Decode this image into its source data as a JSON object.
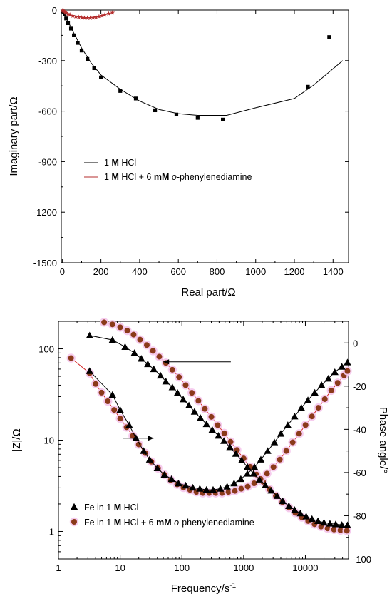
{
  "chart_data": [
    {
      "type": "scatter",
      "xlabel": "Real part/Ω",
      "ylabel": "Imaginary part/Ω",
      "xlim": [
        -5,
        1480
      ],
      "ylim": [
        -1500,
        0
      ],
      "xticks": [
        0,
        200,
        400,
        600,
        800,
        1000,
        1200,
        1400
      ],
      "yticks": [
        0,
        -300,
        -600,
        -900,
        -1200,
        -1500
      ],
      "legend_position": "middle-left",
      "series": [
        {
          "name": "1 M HCl",
          "color": "#000000",
          "marker": "square",
          "points": [
            [
              5,
              -8
            ],
            [
              12,
              -25
            ],
            [
              20,
              -50
            ],
            [
              30,
              -78
            ],
            [
              45,
              -110
            ],
            [
              60,
              -150
            ],
            [
              80,
              -195
            ],
            [
              100,
              -240
            ],
            [
              130,
              -290
            ],
            [
              165,
              -345
            ],
            [
              200,
              -400
            ],
            [
              300,
              -480
            ],
            [
              380,
              -525
            ],
            [
              480,
              -595
            ],
            [
              590,
              -620
            ],
            [
              700,
              -640
            ],
            [
              830,
              -650
            ],
            [
              1270,
              -455
            ],
            [
              1380,
              -160
            ]
          ],
          "fit": [
            [
              0,
              -5
            ],
            [
              20,
              -45
            ],
            [
              50,
              -115
            ],
            [
              100,
              -225
            ],
            [
              150,
              -315
            ],
            [
              200,
              -385
            ],
            [
              300,
              -470
            ],
            [
              400,
              -540
            ],
            [
              500,
              -590
            ],
            [
              600,
              -615
            ],
            [
              700,
              -625
            ],
            [
              850,
              -625
            ],
            [
              1000,
              -580
            ],
            [
              1200,
              -525
            ],
            [
              1300,
              -445
            ],
            [
              1450,
              -300
            ]
          ]
        },
        {
          "name": "1 M HCl + 6 mM o-phenylenediamine",
          "color": "#b42d2d",
          "marker": "star",
          "points": [
            [
              2,
              -2
            ],
            [
              6,
              -5
            ],
            [
              10,
              -9
            ],
            [
              15,
              -13
            ],
            [
              20,
              -17
            ],
            [
              30,
              -23
            ],
            [
              40,
              -28
            ],
            [
              55,
              -34
            ],
            [
              70,
              -38
            ],
            [
              85,
              -42
            ],
            [
              100,
              -44
            ],
            [
              115,
              -46
            ],
            [
              130,
              -47
            ],
            [
              145,
              -47
            ],
            [
              160,
              -45
            ],
            [
              175,
              -42
            ],
            [
              190,
              -38
            ],
            [
              205,
              -33
            ],
            [
              220,
              -28
            ],
            [
              240,
              -22
            ],
            [
              260,
              -15
            ]
          ],
          "fit": [
            [
              0,
              0
            ],
            [
              20,
              -16
            ],
            [
              50,
              -32
            ],
            [
              100,
              -44
            ],
            [
              140,
              -47
            ],
            [
              180,
              -42
            ],
            [
              220,
              -29
            ],
            [
              260,
              -15
            ]
          ]
        }
      ],
      "legend": [
        {
          "pre": "1 ",
          "bold": "M",
          "post": " HCl"
        },
        {
          "pre": "1 ",
          "bold": "M",
          "mid": " HCl + 6 ",
          "bold2": "mM",
          "post_italic": " o",
          "post": "-phenylenediamine"
        }
      ]
    },
    {
      "type": "scatter",
      "xlabel": "Frequency/s",
      "xlabel_sup": "-1",
      "ylabel_left": "|Z|/Ω",
      "ylabel_right": "Phase angle/°",
      "xscale": "log",
      "yscale_left": "log",
      "xlim": [
        1,
        50000
      ],
      "ylim_left": [
        0.5,
        200
      ],
      "ylim_right": [
        -100,
        10
      ],
      "xticks": [
        1,
        10,
        100,
        1000,
        10000
      ],
      "xtick_labels": [
        "1",
        "10",
        "100",
        "1000",
        "10000"
      ],
      "yticks_left": [
        1,
        10,
        100
      ],
      "yticks_right": [
        0,
        -20,
        -40,
        -60,
        -80,
        -100
      ],
      "legend_position": "bottom-left",
      "series": [
        {
          "name": "Fe in 1 M HCl",
          "axis": "left",
          "quantity": "|Z|",
          "color": "#000000",
          "marker": "triangle",
          "points": [
            [
              3.2,
              140
            ],
            [
              7.5,
              125
            ],
            [
              12,
              105
            ],
            [
              17,
              90
            ],
            [
              22,
              78
            ],
            [
              28,
              68
            ],
            [
              35,
              60
            ],
            [
              45,
              51
            ],
            [
              55,
              44
            ],
            [
              70,
              38
            ],
            [
              85,
              33
            ],
            [
              105,
              28
            ],
            [
              130,
              24
            ],
            [
              160,
              20.5
            ],
            [
              200,
              17.5
            ],
            [
              250,
              15
            ],
            [
              310,
              13
            ],
            [
              390,
              11.2
            ],
            [
              480,
              9.8
            ],
            [
              600,
              8.4
            ],
            [
              750,
              7.1
            ],
            [
              930,
              6
            ],
            [
              1150,
              5.1
            ],
            [
              1450,
              4.3
            ],
            [
              1800,
              3.7
            ],
            [
              2250,
              3.2
            ],
            [
              2800,
              2.8
            ],
            [
              3500,
              2.45
            ],
            [
              4300,
              2.15
            ],
            [
              5400,
              1.9
            ],
            [
              6700,
              1.72
            ],
            [
              8300,
              1.58
            ],
            [
              10300,
              1.46
            ],
            [
              12800,
              1.37
            ],
            [
              16000,
              1.3
            ],
            [
              20000,
              1.25
            ],
            [
              25000,
              1.22
            ],
            [
              31000,
              1.2
            ],
            [
              39000,
              1.18
            ],
            [
              48000,
              1.17
            ]
          ]
        },
        {
          "name": "Fe in 1 M HCl (phase)",
          "axis": "right",
          "quantity": "Phase angle",
          "color": "#000000",
          "marker": "triangle",
          "points": [
            [
              3.2,
              -13
            ],
            [
              7.5,
              -24
            ],
            [
              10,
              -31
            ],
            [
              14,
              -38
            ],
            [
              18,
              -44
            ],
            [
              24,
              -50
            ],
            [
              30,
              -54
            ],
            [
              40,
              -58
            ],
            [
              52,
              -61
            ],
            [
              68,
              -63
            ],
            [
              88,
              -65
            ],
            [
              115,
              -66
            ],
            [
              150,
              -67
            ],
            [
              195,
              -67.5
            ],
            [
              250,
              -68
            ],
            [
              320,
              -68
            ],
            [
              420,
              -67.5
            ],
            [
              540,
              -66.5
            ],
            [
              700,
              -65
            ],
            [
              900,
              -63
            ],
            [
              1150,
              -60.5
            ],
            [
              1500,
              -57.5
            ],
            [
              1900,
              -54
            ],
            [
              2450,
              -50
            ],
            [
              3150,
              -46
            ],
            [
              4000,
              -42
            ],
            [
              5200,
              -38
            ],
            [
              6700,
              -34
            ],
            [
              8600,
              -30
            ],
            [
              11000,
              -26.5
            ],
            [
              14200,
              -23
            ],
            [
              18300,
              -19.5
            ],
            [
              23500,
              -16.5
            ],
            [
              30000,
              -13.5
            ],
            [
              39000,
              -11
            ],
            [
              48000,
              -9
            ]
          ]
        },
        {
          "name": "Fe in 1 M HCl + 6 mM o-phenylenediamine",
          "axis": "left",
          "quantity": "|Z|",
          "color": "#8b3a1a",
          "marker": "circle",
          "points": [
            [
              5.5,
              195
            ],
            [
              7.5,
              185
            ],
            [
              10,
              172
            ],
            [
              13,
              158
            ],
            [
              16.5,
              143
            ],
            [
              21,
              126
            ],
            [
              27,
              110
            ],
            [
              34,
              95
            ],
            [
              43,
              82
            ],
            [
              55,
              70
            ],
            [
              70,
              59
            ],
            [
              90,
              49
            ],
            [
              115,
              40
            ],
            [
              145,
              33
            ],
            [
              185,
              27
            ],
            [
              235,
              22
            ],
            [
              300,
              18
            ],
            [
              380,
              14.6
            ],
            [
              485,
              11.9
            ],
            [
              615,
              9.6
            ],
            [
              780,
              7.8
            ],
            [
              1000,
              6.3
            ],
            [
              1270,
              5.1
            ],
            [
              1620,
              4.2
            ],
            [
              2060,
              3.5
            ],
            [
              2620,
              2.9
            ],
            [
              3330,
              2.45
            ],
            [
              4240,
              2.1
            ],
            [
              5400,
              1.82
            ],
            [
              6870,
              1.6
            ],
            [
              8740,
              1.43
            ],
            [
              11100,
              1.3
            ],
            [
              14100,
              1.2
            ],
            [
              18000,
              1.13
            ],
            [
              22900,
              1.08
            ],
            [
              29100,
              1.05
            ],
            [
              37000,
              1.03
            ],
            [
              47000,
              1.02
            ]
          ]
        },
        {
          "name": "Fe in 1 M HCl + 6 mM o-phenylenediamine (phase)",
          "axis": "right",
          "quantity": "Phase angle",
          "color": "#8b3a1a",
          "marker": "circle",
          "points": [
            [
              1.6,
              -7
            ],
            [
              3.2,
              -14
            ],
            [
              4,
              -19
            ],
            [
              5,
              -23
            ],
            [
              6.3,
              -27
            ],
            [
              8,
              -31
            ],
            [
              10,
              -35
            ],
            [
              12.7,
              -39
            ],
            [
              16,
              -43
            ],
            [
              20,
              -47
            ],
            [
              25.5,
              -51
            ],
            [
              32,
              -55
            ],
            [
              41,
              -58
            ],
            [
              52,
              -61
            ],
            [
              66,
              -63.5
            ],
            [
              84,
              -65.5
            ],
            [
              106,
              -67
            ],
            [
              135,
              -68
            ],
            [
              172,
              -69
            ],
            [
              218,
              -69.5
            ],
            [
              277,
              -69.5
            ],
            [
              352,
              -69.5
            ],
            [
              447,
              -69.5
            ],
            [
              568,
              -69
            ],
            [
              722,
              -68.5
            ],
            [
              917,
              -67.5
            ],
            [
              1165,
              -66.5
            ],
            [
              1480,
              -65
            ],
            [
              1880,
              -63
            ],
            [
              2390,
              -60.5
            ],
            [
              3040,
              -57.5
            ],
            [
              3860,
              -54
            ],
            [
              4900,
              -50
            ],
            [
              6230,
              -46
            ],
            [
              7920,
              -42
            ],
            [
              10060,
              -38
            ],
            [
              12780,
              -34
            ],
            [
              16240,
              -30
            ],
            [
              20640,
              -26
            ],
            [
              26230,
              -22
            ],
            [
              33330,
              -18.5
            ],
            [
              42360,
              -15
            ],
            [
              48000,
              -13
            ]
          ]
        }
      ],
      "arrows": [
        {
          "points_to": "left",
          "y_axis": "left",
          "y": 72,
          "x_from": 50,
          "x_to": 620
        },
        {
          "points_to": "right",
          "y_axis": "left",
          "y": 10.5,
          "x_from": 11,
          "x_to": 35
        }
      ],
      "legend": [
        {
          "pre": "Fe in 1 ",
          "bold": "M",
          "post": " HCl"
        },
        {
          "pre": "Fe in 1 ",
          "bold": "M",
          "mid": " HCl + 6 ",
          "bold2": "mM",
          "post_italic": " o",
          "post": "-phenylenediamine"
        }
      ]
    }
  ]
}
